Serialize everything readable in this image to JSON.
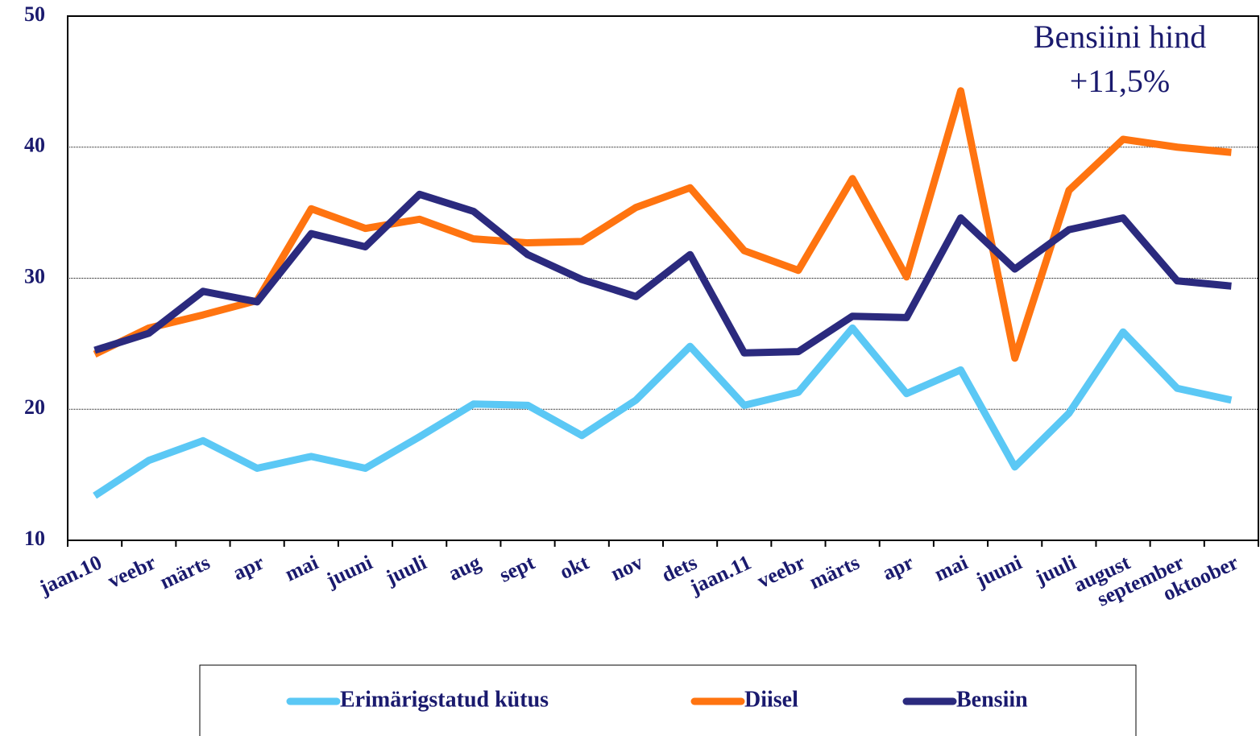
{
  "chart_data": {
    "type": "line",
    "annotations": [
      "Bensiini hind",
      "+11,5%"
    ],
    "categories": [
      "jaan.10",
      "veebr",
      "märts",
      "apr",
      "mai",
      "juuni",
      "juuli",
      "aug",
      "sept",
      "okt",
      "nov",
      "dets",
      "jaan.11",
      "veebr",
      "märts",
      "apr",
      "mai",
      "juuni",
      "juuli",
      "august",
      "september",
      "oktoober"
    ],
    "series": [
      {
        "name": "Erimärigstatud kütus",
        "color": "#5bc8f5",
        "values": [
          13.4,
          16.1,
          17.6,
          15.5,
          16.4,
          15.5,
          17.9,
          20.4,
          20.3,
          18.0,
          20.7,
          24.8,
          20.3,
          21.3,
          26.2,
          21.2,
          23.0,
          15.6,
          19.7,
          25.9,
          21.6,
          20.7
        ]
      },
      {
        "name": "Diisel",
        "color": "#ff7410",
        "values": [
          24.2,
          26.2,
          27.2,
          28.3,
          35.3,
          33.8,
          34.5,
          33.0,
          32.7,
          32.8,
          35.4,
          36.9,
          32.1,
          30.6,
          37.6,
          30.1,
          44.3,
          23.9,
          36.7,
          40.6,
          40.0,
          39.6
        ]
      },
      {
        "name": "Bensiin",
        "color": "#2b2a7e",
        "values": [
          24.5,
          25.8,
          29.0,
          28.2,
          33.4,
          32.4,
          36.4,
          35.1,
          31.8,
          29.9,
          28.6,
          31.8,
          24.3,
          24.4,
          27.1,
          27.0,
          34.6,
          30.7,
          33.7,
          34.6,
          29.8,
          29.4
        ]
      }
    ],
    "ylim": [
      10,
      50
    ],
    "yticks": [
      10,
      20,
      30,
      40,
      50
    ],
    "grid": true
  }
}
